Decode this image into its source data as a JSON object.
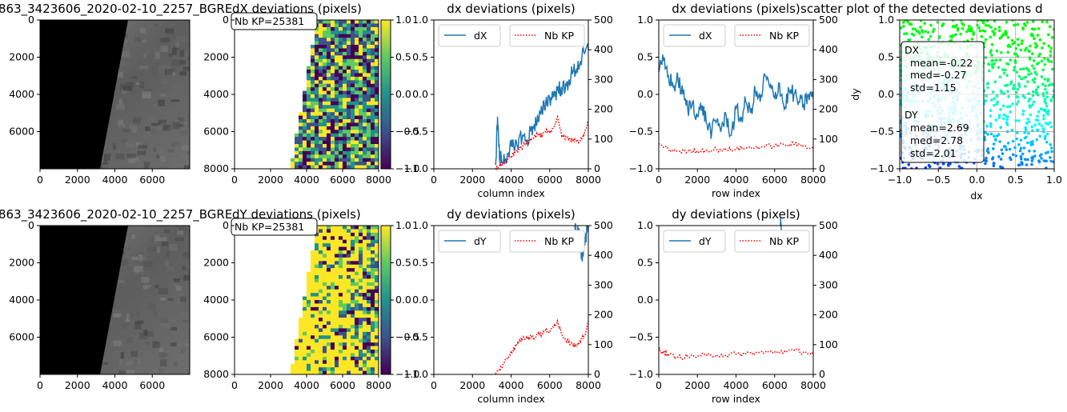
{
  "title_text": "863_3423606_2020-02-10_2257_BGRE",
  "ca_title_text": "dX deviations (pixels)",
  "cb_title_text": "dY deviations (pixels)",
  "nbkp_text": "Nb KP=25381",
  "colorbar_ticks": [
    "1.0",
    "0.5",
    "0.0",
    "−0.5",
    "−1.0"
  ],
  "image_axes": {
    "xticks": [
      "0",
      "2000",
      "4000",
      "6000"
    ],
    "yticks": [
      "0",
      "2000",
      "4000",
      "6000"
    ]
  },
  "map_axes": {
    "xticks": [
      "0",
      "2000",
      "4000",
      "6000",
      "8000"
    ],
    "yticks": [
      "0",
      "2000",
      "4000",
      "6000",
      "8000"
    ]
  },
  "colors": {
    "line": "#1f77b4",
    "kp": "#ff0000",
    "viridis_low": "#440154",
    "viridis_high": "#fde725"
  },
  "chart_data": [
    {
      "id": "dx-col",
      "type": "line",
      "title": "dx deviations (pixels)",
      "xlabel": "column index",
      "xlim": [
        0,
        8000
      ],
      "ylim": [
        -1.0,
        1.0
      ],
      "y2lim": [
        0,
        500
      ],
      "xticks": [
        "0",
        "2000",
        "4000",
        "6000",
        "8000"
      ],
      "yticks": [
        "−1.0",
        "−0.5",
        "0.0",
        "0.5",
        "1.0"
      ],
      "y2ticks": [
        "0",
        "100",
        "200",
        "300",
        "400",
        "500"
      ],
      "legend": [
        "dX",
        "Nb KP"
      ],
      "series": [
        {
          "name": "dX",
          "axis": "left",
          "x": [
            3200,
            3300,
            3400,
            3600,
            3800,
            4000,
            4200,
            4400,
            4600,
            4800,
            5000,
            5200,
            5400,
            5600,
            5800,
            6000,
            6200,
            6400,
            6600,
            6800,
            7000,
            7200,
            7400,
            7600,
            7800,
            8000
          ],
          "y": [
            -0.95,
            -0.3,
            -0.85,
            -0.9,
            -0.8,
            -0.7,
            -0.75,
            -0.6,
            -0.55,
            -0.65,
            -0.5,
            -0.4,
            -0.35,
            -0.25,
            -0.1,
            -0.05,
            0.0,
            0.05,
            0.1,
            0.05,
            0.2,
            0.3,
            0.35,
            0.45,
            0.55,
            0.6
          ]
        },
        {
          "name": "Nb KP",
          "axis": "right",
          "x": [
            3200,
            3400,
            3600,
            3800,
            4000,
            4200,
            4400,
            4600,
            4800,
            5000,
            5200,
            5400,
            5600,
            5800,
            6000,
            6200,
            6400,
            6600,
            6800,
            7000,
            7200,
            7400,
            7600,
            7800,
            8000
          ],
          "y": [
            2,
            10,
            20,
            30,
            40,
            55,
            65,
            75,
            85,
            100,
            110,
            115,
            110,
            125,
            120,
            140,
            175,
            120,
            100,
            105,
            95,
            90,
            100,
            120,
            160
          ]
        }
      ]
    },
    {
      "id": "dx-row",
      "type": "line",
      "title": "dx deviations (pixels)",
      "xlabel": "row index",
      "xlim": [
        0,
        8000
      ],
      "ylim": [
        -1.0,
        1.0
      ],
      "y2lim": [
        0,
        500
      ],
      "xticks": [
        "0",
        "2000",
        "4000",
        "6000",
        "8000"
      ],
      "yticks": [
        "−1.0",
        "−0.5",
        "0.0",
        "0.5",
        "1.0"
      ],
      "y2ticks": [
        "0",
        "100",
        "200",
        "300",
        "400",
        "500"
      ],
      "legend": [
        "dX",
        "Nb KP"
      ],
      "series": [
        {
          "name": "dX",
          "axis": "left",
          "x": [
            0,
            250,
            500,
            750,
            1000,
            1250,
            1500,
            1750,
            2000,
            2250,
            2500,
            2750,
            3000,
            3250,
            3500,
            3750,
            4000,
            4250,
            4500,
            4750,
            5000,
            5250,
            5500,
            5750,
            6000,
            6250,
            6500,
            6750,
            7000,
            7250,
            7500,
            7750,
            8000
          ],
          "y": [
            0.3,
            0.45,
            0.25,
            0.1,
            0.2,
            0.0,
            -0.2,
            -0.1,
            -0.3,
            -0.15,
            -0.4,
            -0.5,
            -0.35,
            -0.45,
            -0.3,
            -0.55,
            -0.2,
            -0.35,
            -0.1,
            -0.25,
            0.05,
            -0.1,
            0.25,
            0.1,
            -0.05,
            0.15,
            -0.2,
            0.05,
            0.0,
            -0.1,
            -0.15,
            0.0,
            -0.05
          ]
        },
        {
          "name": "Nb KP",
          "axis": "right",
          "x": [
            0,
            500,
            1000,
            1500,
            2000,
            2500,
            3000,
            3500,
            4000,
            4500,
            5000,
            5500,
            6000,
            6500,
            7000,
            7500,
            8000
          ],
          "y": [
            85,
            65,
            60,
            58,
            60,
            62,
            65,
            63,
            67,
            70,
            72,
            75,
            78,
            80,
            82,
            78,
            72
          ]
        }
      ]
    },
    {
      "id": "dy-col",
      "type": "line",
      "title": "dy deviations (pixels)",
      "xlabel": "column index",
      "xlim": [
        0,
        8000
      ],
      "ylim": [
        -1.0,
        1.0
      ],
      "y2lim": [
        0,
        500
      ],
      "xticks": [
        "0",
        "2000",
        "4000",
        "6000",
        "8000"
      ],
      "yticks": [
        "−1.0",
        "−0.5",
        "0.0",
        "0.5",
        "1.0"
      ],
      "y2ticks": [
        "0",
        "100",
        "200",
        "300",
        "400",
        "500"
      ],
      "legend": [
        "dY",
        "Nb KP"
      ],
      "series": [
        {
          "name": "dY",
          "axis": "left",
          "x": [
            7300,
            7400,
            7500,
            7600,
            7700,
            7800,
            7900,
            8000
          ],
          "y": [
            1.0,
            0.85,
            0.95,
            0.7,
            0.6,
            0.8,
            0.9,
            1.0
          ]
        },
        {
          "name": "Nb KP",
          "axis": "right",
          "x": [
            3200,
            3400,
            3600,
            3800,
            4000,
            4200,
            4400,
            4600,
            4800,
            5000,
            5200,
            5400,
            5600,
            5800,
            6000,
            6200,
            6400,
            6600,
            6800,
            7000,
            7200,
            7400,
            7600,
            7800,
            8000
          ],
          "y": [
            2,
            15,
            35,
            55,
            75,
            90,
            110,
            120,
            125,
            130,
            120,
            140,
            135,
            150,
            140,
            160,
            180,
            140,
            120,
            110,
            100,
            95,
            110,
            130,
            180
          ]
        }
      ]
    },
    {
      "id": "dy-row",
      "type": "line",
      "title": "dy deviations (pixels)",
      "xlabel": "row index",
      "xlim": [
        0,
        8000
      ],
      "ylim": [
        -1.0,
        1.0
      ],
      "y2lim": [
        0,
        500
      ],
      "xticks": [
        "0",
        "2000",
        "4000",
        "6000",
        "8000"
      ],
      "yticks": [
        "−1.0",
        "−0.5",
        "0.0",
        "0.5",
        "1.0"
      ],
      "y2ticks": [
        "0",
        "100",
        "200",
        "300",
        "400",
        "500"
      ],
      "legend": [
        "dY",
        "Nb KP"
      ],
      "series": [
        {
          "name": "dY",
          "axis": "left",
          "x": [
            6300,
            6350
          ],
          "y": [
            1.0,
            0.95
          ]
        },
        {
          "name": "Nb KP",
          "axis": "right",
          "x": [
            0,
            250,
            500,
            1000,
            1500,
            2000,
            2500,
            3000,
            3500,
            4000,
            4500,
            5000,
            5500,
            6000,
            6500,
            7000,
            7500,
            8000
          ],
          "y": [
            85,
            75,
            65,
            58,
            60,
            62,
            63,
            66,
            65,
            68,
            70,
            72,
            74,
            75,
            78,
            80,
            75,
            70
          ]
        }
      ]
    },
    {
      "id": "scatter",
      "type": "scatter",
      "title": "scatter plot of the detected deviations d",
      "xlabel": "dx",
      "ylabel": "dy",
      "xlim": [
        -1.0,
        1.0
      ],
      "ylim": [
        -1.0,
        1.0
      ],
      "xticks": [
        "−1.0",
        "−0.5",
        "0.0",
        "0.5",
        "1.0"
      ],
      "yticks": [
        "−1.0",
        "−0.5",
        "0.0",
        "0.5",
        "1.0"
      ],
      "grid": true,
      "stats": {
        "dx": {
          "label": "DX",
          "mean": "mean=-0.22",
          "med": "med=-0.27",
          "std": "std=1.15"
        },
        "dy": {
          "label": "DY",
          "mean": "mean=2.69",
          "med": "med=2.78",
          "std": "std=2.01"
        }
      }
    }
  ]
}
